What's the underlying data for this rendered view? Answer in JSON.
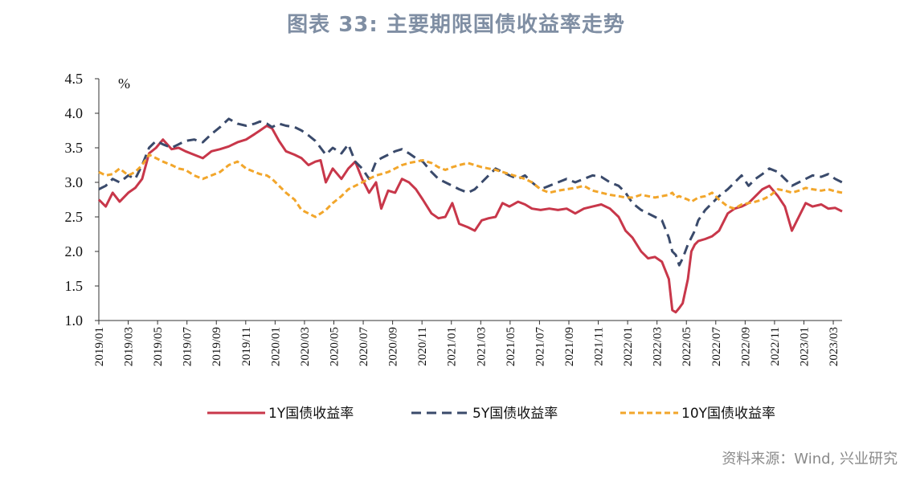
{
  "title": "图表 33: 主要期限国债收益率走势",
  "source": "资料来源：Wind, 兴业研究",
  "chart_data": {
    "type": "line",
    "unit": "%",
    "ylim": [
      1.0,
      4.5
    ],
    "yticks": [
      "1.0",
      "1.5",
      "2.0",
      "2.5",
      "3.0",
      "3.5",
      "4.0",
      "4.5"
    ],
    "xlim": [
      2019.0,
      2023.29
    ],
    "xticks": [
      "2019/01",
      "2019/03",
      "2019/05",
      "2019/07",
      "2019/09",
      "2019/11",
      "2020/01",
      "2020/03",
      "2020/05",
      "2020/07",
      "2020/09",
      "2020/11",
      "2021/01",
      "2021/03",
      "2021/05",
      "2021/07",
      "2021/09",
      "2021/11",
      "2022/01",
      "2022/03",
      "2022/05",
      "2022/07",
      "2022/09",
      "2022/11",
      "2023/01",
      "2023/03"
    ],
    "legend_position": "bottom",
    "series": [
      {
        "name": "1Y国债收益率",
        "color": "#c8374a",
        "style": "solid",
        "x": [
          2019.0,
          2019.04,
          2019.08,
          2019.12,
          2019.17,
          2019.21,
          2019.25,
          2019.29,
          2019.33,
          2019.37,
          2019.42,
          2019.46,
          2019.5,
          2019.55,
          2019.6,
          2019.65,
          2019.7,
          2019.75,
          2019.8,
          2019.85,
          2019.9,
          2019.93,
          2019.97,
          2020.0,
          2020.04,
          2020.08,
          2020.13,
          2020.17,
          2020.21,
          2020.25,
          2020.28,
          2020.31,
          2020.35,
          2020.4,
          2020.44,
          2020.48,
          2020.52,
          2020.56,
          2020.6,
          2020.63,
          2020.67,
          2020.71,
          2020.75,
          2020.79,
          2020.83,
          2020.87,
          2020.92,
          2020.96,
          2021.0,
          2021.04,
          2021.08,
          2021.13,
          2021.17,
          2021.21,
          2021.25,
          2021.29,
          2021.33,
          2021.37,
          2021.42,
          2021.46,
          2021.5,
          2021.55,
          2021.6,
          2021.65,
          2021.7,
          2021.75,
          2021.8,
          2021.85,
          2021.9,
          2021.95,
          2022.0,
          2022.04,
          2022.08,
          2022.13,
          2022.17,
          2022.21,
          2022.25,
          2022.29,
          2022.31,
          2022.33,
          2022.35,
          2022.37,
          2022.4,
          2022.42,
          2022.44,
          2022.46,
          2022.5,
          2022.54,
          2022.58,
          2022.63,
          2022.67,
          2022.71,
          2022.75,
          2022.79,
          2022.83,
          2022.87,
          2022.92,
          2022.96,
          2023.0,
          2023.04,
          2023.08,
          2023.12,
          2023.17,
          2023.21,
          2023.25,
          2023.29
        ],
        "values": [
          2.75,
          2.65,
          2.85,
          2.72,
          2.85,
          2.92,
          3.05,
          3.42,
          3.5,
          3.62,
          3.48,
          3.5,
          3.45,
          3.4,
          3.35,
          3.45,
          3.48,
          3.52,
          3.58,
          3.62,
          3.7,
          3.75,
          3.82,
          3.78,
          3.6,
          3.45,
          3.4,
          3.35,
          3.25,
          3.3,
          3.32,
          3.0,
          3.2,
          3.05,
          3.2,
          3.3,
          3.05,
          2.85,
          3.0,
          2.62,
          2.88,
          2.85,
          3.05,
          3.0,
          2.9,
          2.75,
          2.55,
          2.48,
          2.5,
          2.7,
          2.4,
          2.35,
          2.3,
          2.45,
          2.48,
          2.5,
          2.7,
          2.65,
          2.72,
          2.68,
          2.62,
          2.6,
          2.62,
          2.6,
          2.62,
          2.55,
          2.62,
          2.65,
          2.68,
          2.62,
          2.5,
          2.3,
          2.2,
          2.0,
          1.9,
          1.92,
          1.85,
          1.6,
          1.15,
          1.12,
          1.18,
          1.25,
          1.6,
          2.0,
          2.1,
          2.15,
          2.18,
          2.22,
          2.3,
          2.55,
          2.62,
          2.65,
          2.7,
          2.8,
          2.9,
          2.95,
          2.8,
          2.65,
          2.3,
          2.5,
          2.7,
          2.65,
          2.68,
          2.62,
          2.63,
          2.58
        ]
      },
      {
        "name": "5Y国债收益率",
        "color": "#3a4a6b",
        "style": "dashed",
        "x": [
          2019.0,
          2019.04,
          2019.08,
          2019.12,
          2019.17,
          2019.21,
          2019.25,
          2019.29,
          2019.33,
          2019.37,
          2019.42,
          2019.46,
          2019.5,
          2019.55,
          2019.6,
          2019.65,
          2019.7,
          2019.75,
          2019.8,
          2019.85,
          2019.9,
          2019.93,
          2019.97,
          2020.0,
          2020.04,
          2020.08,
          2020.13,
          2020.17,
          2020.21,
          2020.25,
          2020.28,
          2020.31,
          2020.35,
          2020.4,
          2020.44,
          2020.48,
          2020.52,
          2020.56,
          2020.6,
          2020.63,
          2020.67,
          2020.71,
          2020.75,
          2020.79,
          2020.83,
          2020.87,
          2020.92,
          2020.96,
          2021.0,
          2021.04,
          2021.08,
          2021.13,
          2021.17,
          2021.21,
          2021.25,
          2021.29,
          2021.33,
          2021.37,
          2021.42,
          2021.46,
          2021.5,
          2021.55,
          2021.6,
          2021.65,
          2021.7,
          2021.75,
          2021.8,
          2021.85,
          2021.9,
          2021.95,
          2022.0,
          2022.04,
          2022.08,
          2022.13,
          2022.17,
          2022.21,
          2022.25,
          2022.29,
          2022.31,
          2022.33,
          2022.35,
          2022.37,
          2022.4,
          2022.42,
          2022.44,
          2022.46,
          2022.5,
          2022.54,
          2022.58,
          2022.63,
          2022.67,
          2022.71,
          2022.75,
          2022.79,
          2022.83,
          2022.87,
          2022.92,
          2022.96,
          2023.0,
          2023.04,
          2023.08,
          2023.12,
          2023.17,
          2023.21,
          2023.25,
          2023.29
        ],
        "values": [
          2.9,
          2.95,
          3.05,
          3.0,
          3.1,
          3.05,
          3.25,
          3.5,
          3.6,
          3.55,
          3.5,
          3.55,
          3.6,
          3.62,
          3.58,
          3.7,
          3.8,
          3.92,
          3.85,
          3.82,
          3.85,
          3.88,
          3.85,
          3.8,
          3.85,
          3.82,
          3.8,
          3.75,
          3.68,
          3.6,
          3.5,
          3.4,
          3.5,
          3.42,
          3.55,
          3.3,
          3.2,
          3.05,
          3.3,
          3.35,
          3.4,
          3.45,
          3.48,
          3.42,
          3.35,
          3.3,
          3.15,
          3.05,
          3.0,
          2.95,
          2.9,
          2.85,
          2.9,
          3.0,
          3.1,
          3.2,
          3.15,
          3.1,
          3.05,
          3.1,
          3.0,
          2.9,
          2.95,
          3.0,
          3.05,
          3.0,
          3.05,
          3.1,
          3.08,
          3.0,
          2.95,
          2.85,
          2.7,
          2.6,
          2.55,
          2.5,
          2.45,
          2.2,
          2.0,
          1.95,
          1.8,
          1.9,
          2.1,
          2.2,
          2.3,
          2.45,
          2.6,
          2.7,
          2.8,
          2.9,
          3.0,
          3.1,
          2.95,
          3.05,
          3.12,
          3.2,
          3.15,
          3.05,
          2.95,
          3.0,
          3.05,
          3.1,
          3.08,
          3.12,
          3.05,
          3.0
        ]
      },
      {
        "name": "10Y国债收益率",
        "color": "#f2a62b",
        "style": "dashed",
        "x": [
          2019.0,
          2019.04,
          2019.08,
          2019.12,
          2019.17,
          2019.21,
          2019.25,
          2019.29,
          2019.33,
          2019.37,
          2019.42,
          2019.46,
          2019.5,
          2019.55,
          2019.6,
          2019.65,
          2019.7,
          2019.75,
          2019.8,
          2019.85,
          2019.9,
          2019.93,
          2019.97,
          2020.0,
          2020.04,
          2020.08,
          2020.13,
          2020.17,
          2020.21,
          2020.25,
          2020.28,
          2020.31,
          2020.35,
          2020.4,
          2020.44,
          2020.48,
          2020.52,
          2020.56,
          2020.6,
          2020.63,
          2020.67,
          2020.71,
          2020.75,
          2020.79,
          2020.83,
          2020.87,
          2020.92,
          2020.96,
          2021.0,
          2021.04,
          2021.08,
          2021.13,
          2021.17,
          2021.21,
          2021.25,
          2021.29,
          2021.33,
          2021.37,
          2021.42,
          2021.46,
          2021.5,
          2021.55,
          2021.6,
          2021.65,
          2021.7,
          2021.75,
          2021.8,
          2021.85,
          2021.9,
          2021.95,
          2022.0,
          2022.04,
          2022.08,
          2022.13,
          2022.17,
          2022.21,
          2022.25,
          2022.29,
          2022.31,
          2022.33,
          2022.35,
          2022.37,
          2022.4,
          2022.42,
          2022.44,
          2022.46,
          2022.5,
          2022.54,
          2022.58,
          2022.63,
          2022.67,
          2022.71,
          2022.75,
          2022.79,
          2022.83,
          2022.87,
          2022.92,
          2022.96,
          2023.0,
          2023.04,
          2023.08,
          2023.12,
          2023.17,
          2023.21,
          2023.25,
          2023.29
        ],
        "values": [
          3.15,
          3.1,
          3.12,
          3.2,
          3.1,
          3.15,
          3.25,
          3.4,
          3.35,
          3.3,
          3.25,
          3.2,
          3.18,
          3.1,
          3.05,
          3.1,
          3.15,
          3.25,
          3.3,
          3.2,
          3.15,
          3.12,
          3.1,
          3.05,
          2.95,
          2.85,
          2.75,
          2.6,
          2.55,
          2.5,
          2.55,
          2.6,
          2.7,
          2.8,
          2.9,
          2.95,
          3.0,
          3.05,
          3.1,
          3.12,
          3.15,
          3.2,
          3.25,
          3.28,
          3.3,
          3.32,
          3.28,
          3.22,
          3.18,
          3.22,
          3.25,
          3.28,
          3.25,
          3.22,
          3.2,
          3.18,
          3.15,
          3.12,
          3.08,
          3.05,
          3.0,
          2.9,
          2.85,
          2.88,
          2.9,
          2.92,
          2.95,
          2.88,
          2.85,
          2.82,
          2.8,
          2.78,
          2.78,
          2.82,
          2.8,
          2.78,
          2.8,
          2.82,
          2.85,
          2.78,
          2.8,
          2.78,
          2.75,
          2.72,
          2.75,
          2.78,
          2.8,
          2.85,
          2.75,
          2.65,
          2.62,
          2.68,
          2.7,
          2.72,
          2.75,
          2.8,
          2.9,
          2.88,
          2.85,
          2.88,
          2.92,
          2.9,
          2.88,
          2.9,
          2.87,
          2.85
        ]
      }
    ]
  }
}
